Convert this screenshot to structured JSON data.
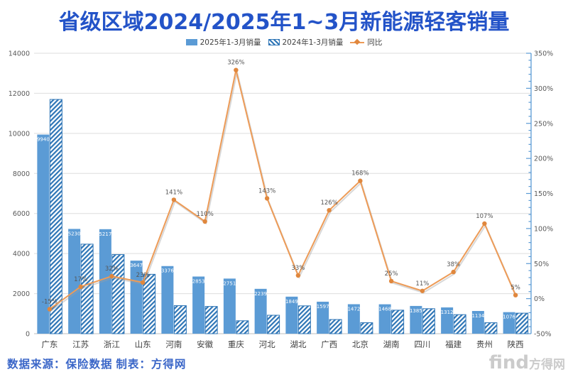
{
  "title": "省级区域2024/2025年1~3月新能源轻客销量",
  "legend": [
    {
      "label": "2025年1-3月销量",
      "type": "solid-bar"
    },
    {
      "label": "2024年1-3月销量",
      "type": "hatched-bar"
    },
    {
      "label": "同比",
      "type": "line"
    }
  ],
  "footer": {
    "source": "数据来源：保险数据 制表：方得网",
    "watermark_latin": "find",
    "watermark_cjk": "方得网"
  },
  "colors": {
    "title_blue": "#2353C8",
    "bar_2025": "#5B9BD5",
    "bar_2024_stripe": "#2E75B6",
    "line_orange": "#ED9B57",
    "marker_orange": "#E0873D",
    "grid": "#DEDEDE",
    "baseline": "#BFBFBF",
    "axis_text": "#595959",
    "bar_label_text": "#FFFFFF",
    "x_label_text": "#404040",
    "right_axis_line": "#5B9BD5",
    "footer_blue": "#3A66C8",
    "watermark_gray": "#CBCBCB"
  },
  "chart_data": {
    "type": "bar",
    "title": "省级区域2024/2025年1~3月新能源轻客销量",
    "categories": [
      "广东",
      "江苏",
      "浙江",
      "山东",
      "河南",
      "安徽",
      "重庆",
      "河北",
      "湖北",
      "广西",
      "北京",
      "湖南",
      "四川",
      "福建",
      "贵州",
      "陕西"
    ],
    "series": [
      {
        "name": "2025年1-3月销量",
        "type": "bar",
        "style": "solid",
        "axis": "left",
        "labeled": true,
        "values": [
          9940,
          5230,
          5217,
          3647,
          3376,
          2853,
          2751,
          2239,
          1849,
          1597,
          1472,
          1468,
          1385,
          1312,
          1134,
          1076
        ]
      },
      {
        "name": "2024年1-3月销量",
        "type": "bar",
        "style": "hatched",
        "axis": "left",
        "labeled": false,
        "values": [
          11694,
          4470,
          3950,
          2965,
          1400,
          1360,
          646,
          921,
          1390,
          707,
          549,
          1174,
          1248,
          951,
          548,
          1025
        ],
        "note": "values estimated from bar heights; not labeled in chart"
      },
      {
        "name": "同比",
        "type": "line",
        "axis": "right",
        "labeled": true,
        "values": [
          -15,
          17,
          32,
          23,
          141,
          110,
          326,
          143,
          33,
          126,
          168,
          25,
          11,
          38,
          107,
          5
        ],
        "labels": [
          "-15%",
          "17%",
          "32%",
          "23%",
          "141%",
          "110%",
          "326%",
          "143%",
          "33%",
          "126%",
          "168%",
          "25%",
          "11%",
          "38%",
          "107%",
          "5%"
        ]
      }
    ],
    "left_axis": {
      "min": 0,
      "max": 14000,
      "step": 2000,
      "ticks": [
        "0",
        "2000",
        "4000",
        "6000",
        "8000",
        "10000",
        "12000",
        "14000"
      ]
    },
    "right_axis": {
      "min": -50,
      "max": 350,
      "step": 50,
      "unit": "%",
      "ticks": [
        "-50%",
        "0%",
        "50%",
        "100%",
        "150%",
        "200%",
        "250%",
        "300%",
        "350%"
      ]
    },
    "grid": "horizontal",
    "legend_position": "top"
  }
}
